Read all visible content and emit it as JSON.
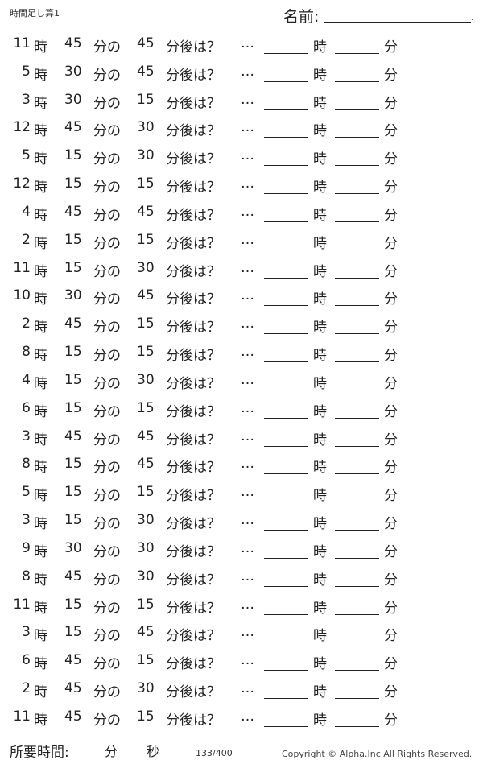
{
  "header": {
    "title": "時間足し算1",
    "name_label": "名前:",
    "name_end": "."
  },
  "labels": {
    "hour": "時",
    "min_no": "分の",
    "min_after": "分後は？",
    "ellipsis": "…",
    "ans_hour": "時",
    "ans_min": "分"
  },
  "problems": [
    {
      "h": "11",
      "m": "45",
      "add": "45"
    },
    {
      "h": "5",
      "m": "30",
      "add": "45"
    },
    {
      "h": "3",
      "m": "30",
      "add": "15"
    },
    {
      "h": "12",
      "m": "45",
      "add": "30"
    },
    {
      "h": "5",
      "m": "15",
      "add": "30"
    },
    {
      "h": "12",
      "m": "15",
      "add": "15"
    },
    {
      "h": "4",
      "m": "45",
      "add": "45"
    },
    {
      "h": "2",
      "m": "15",
      "add": "15"
    },
    {
      "h": "11",
      "m": "15",
      "add": "30"
    },
    {
      "h": "10",
      "m": "30",
      "add": "45"
    },
    {
      "h": "2",
      "m": "45",
      "add": "15"
    },
    {
      "h": "8",
      "m": "15",
      "add": "15"
    },
    {
      "h": "4",
      "m": "15",
      "add": "30"
    },
    {
      "h": "6",
      "m": "15",
      "add": "15"
    },
    {
      "h": "3",
      "m": "45",
      "add": "45"
    },
    {
      "h": "8",
      "m": "15",
      "add": "45"
    },
    {
      "h": "5",
      "m": "15",
      "add": "15"
    },
    {
      "h": "3",
      "m": "15",
      "add": "30"
    },
    {
      "h": "9",
      "m": "30",
      "add": "30"
    },
    {
      "h": "8",
      "m": "45",
      "add": "30"
    },
    {
      "h": "11",
      "m": "15",
      "add": "15"
    },
    {
      "h": "3",
      "m": "15",
      "add": "45"
    },
    {
      "h": "6",
      "m": "45",
      "add": "15"
    },
    {
      "h": "2",
      "m": "45",
      "add": "30"
    },
    {
      "h": "11",
      "m": "45",
      "add": "15"
    }
  ],
  "footer": {
    "time_label": "所要時間:",
    "min": "分",
    "sec": "秒",
    "page": "133/400",
    "copyright": "Copyright ©  Alpha.Inc All Rights Reserved."
  }
}
